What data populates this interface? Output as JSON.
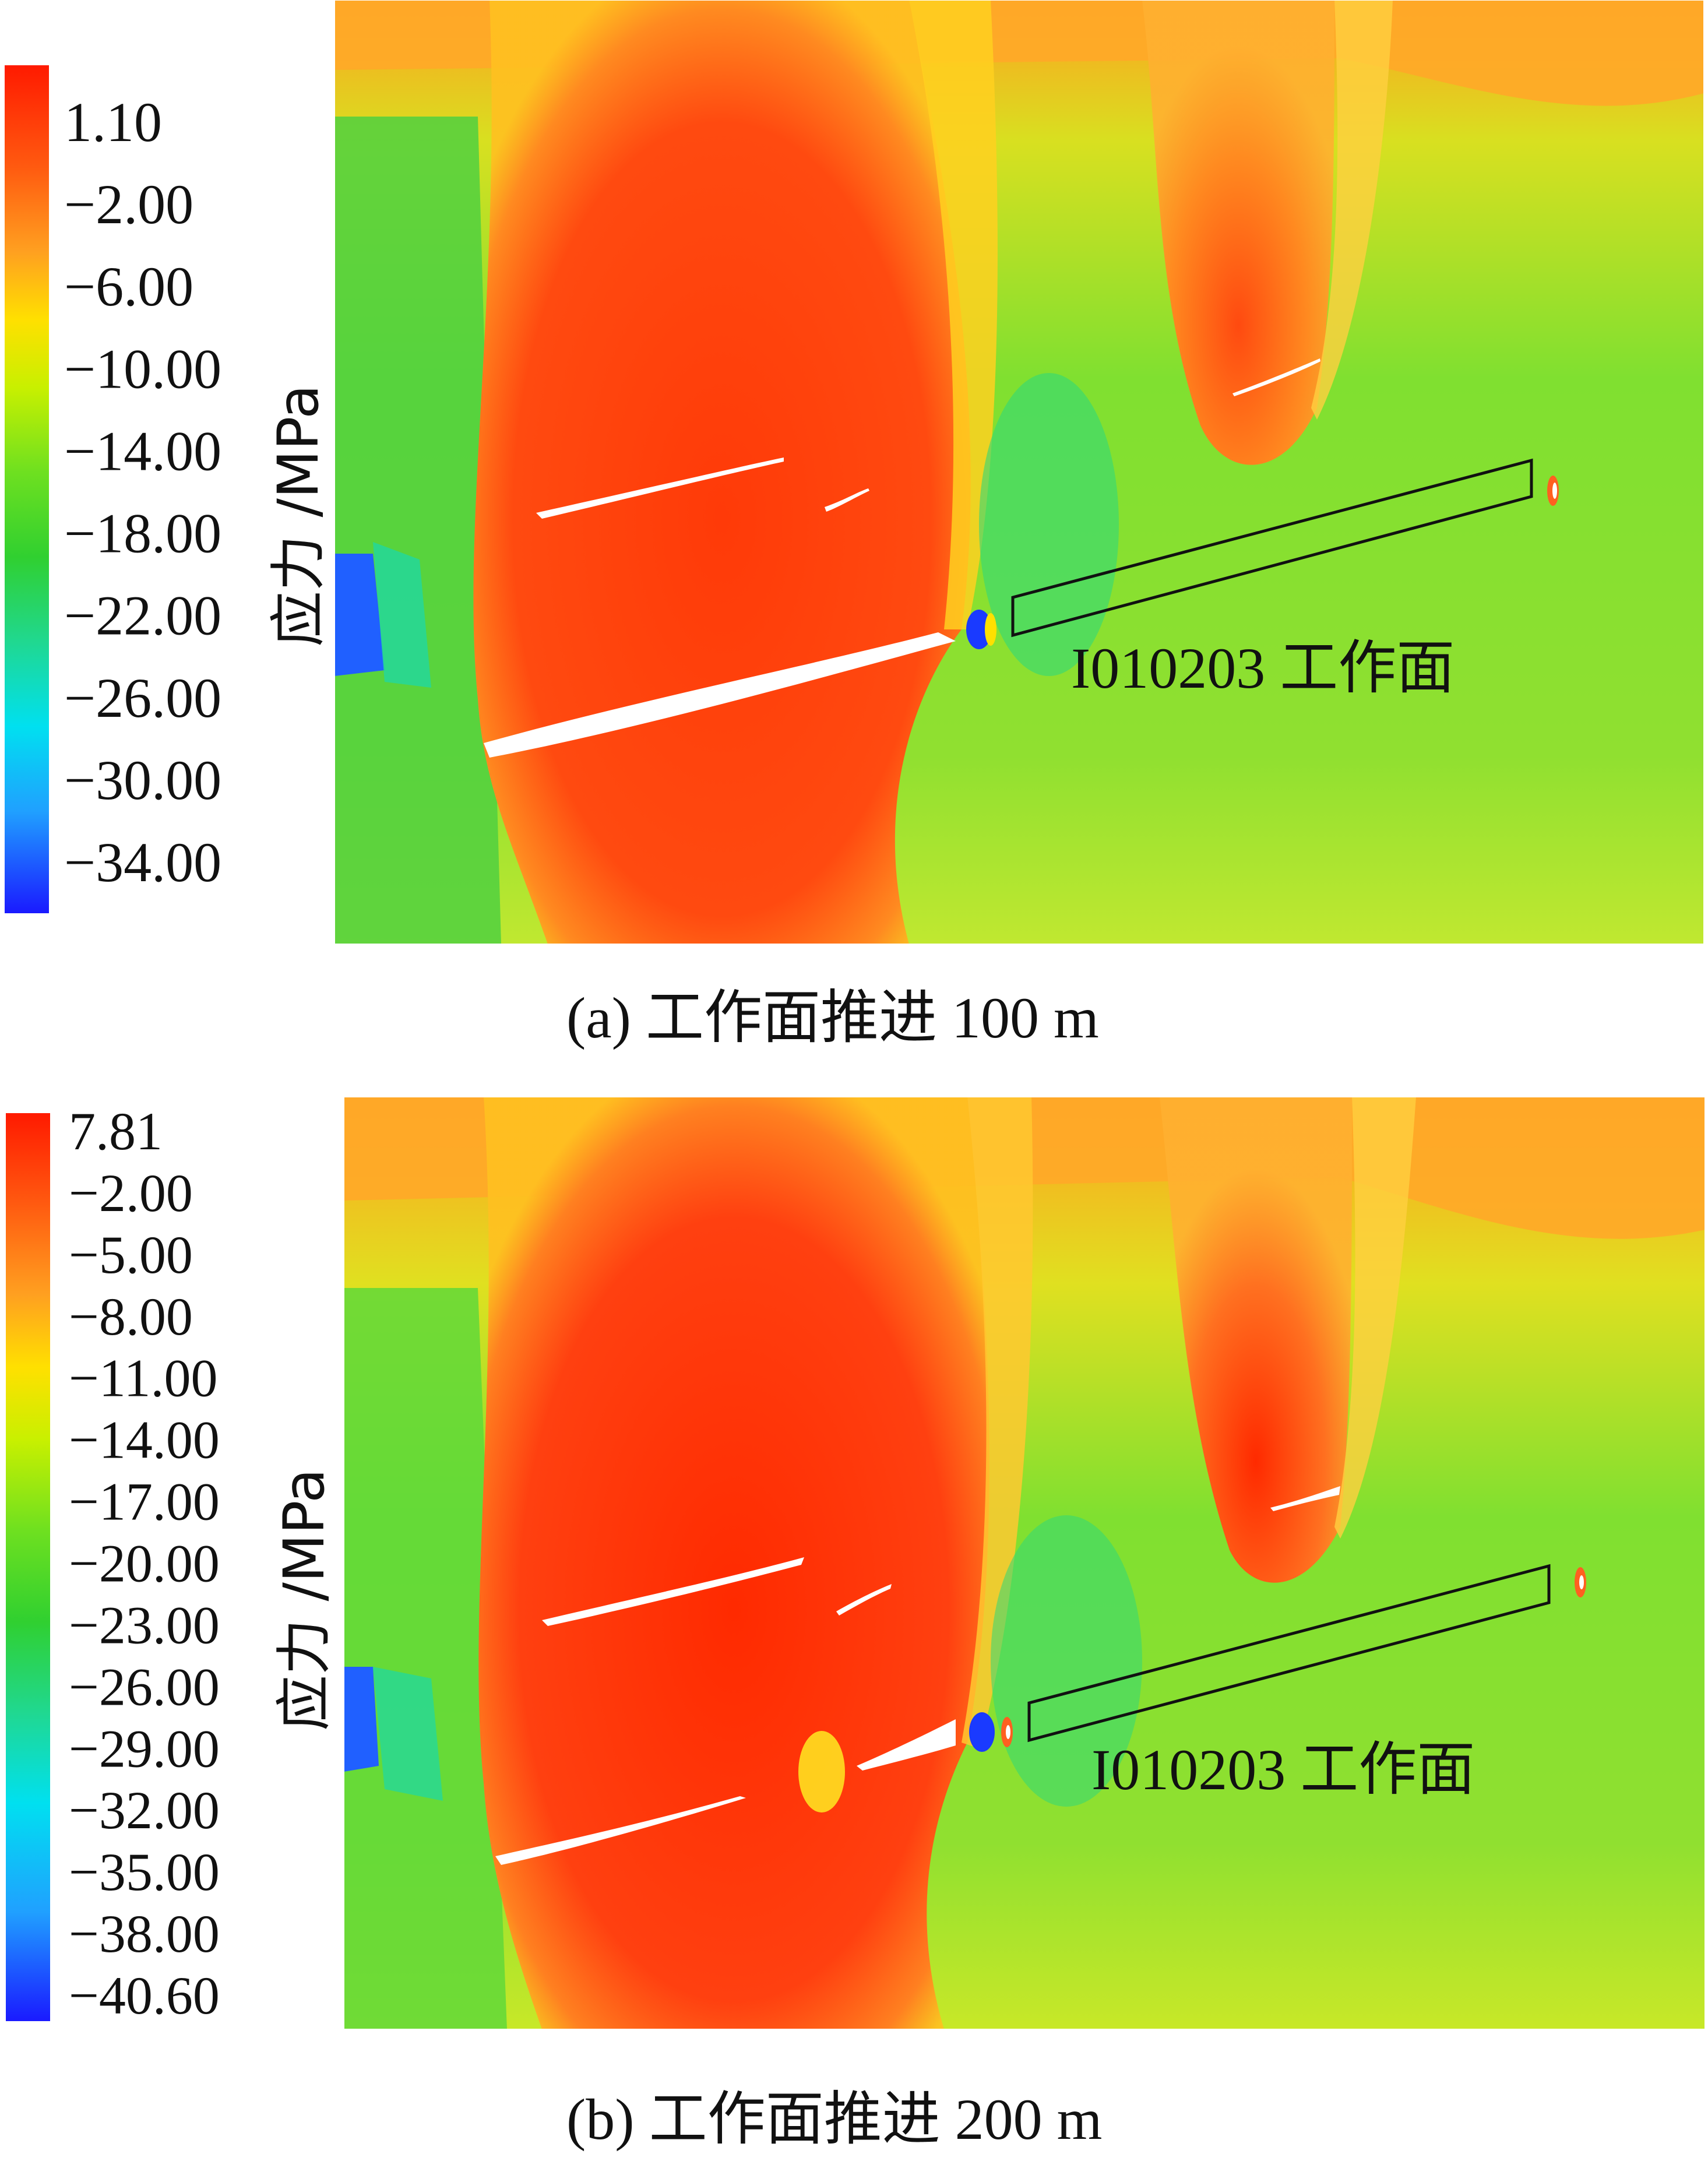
{
  "figures": [
    {
      "id": "a",
      "colorbar": {
        "ticks": [
          "1.10",
          "−2.00",
          "−6.00",
          "−10.00",
          "−14.00",
          "−18.00",
          "−22.00",
          "−26.00",
          "−30.00",
          "−34.00"
        ],
        "unit_label": "应力 /MPa",
        "min_color": "#1a1aff",
        "max_color": "#ff1a00"
      },
      "workface_label": "I010203 工作面",
      "caption": "(a)  工作面推进 100 m"
    },
    {
      "id": "b",
      "colorbar": {
        "ticks": [
          "7.81",
          "−2.00",
          "−5.00",
          "−8.00",
          "−11.00",
          "−14.00",
          "−17.00",
          "−20.00",
          "−23.00",
          "−26.00",
          "−29.00",
          "−32.00",
          "−35.00",
          "−38.00",
          "−40.60"
        ],
        "unit_label": "应力 /MPa",
        "min_color": "#1a1aff",
        "max_color": "#ff1a00"
      },
      "workface_label": "I010203 工作面",
      "caption": "(b)  工作面推进 200 m"
    }
  ]
}
